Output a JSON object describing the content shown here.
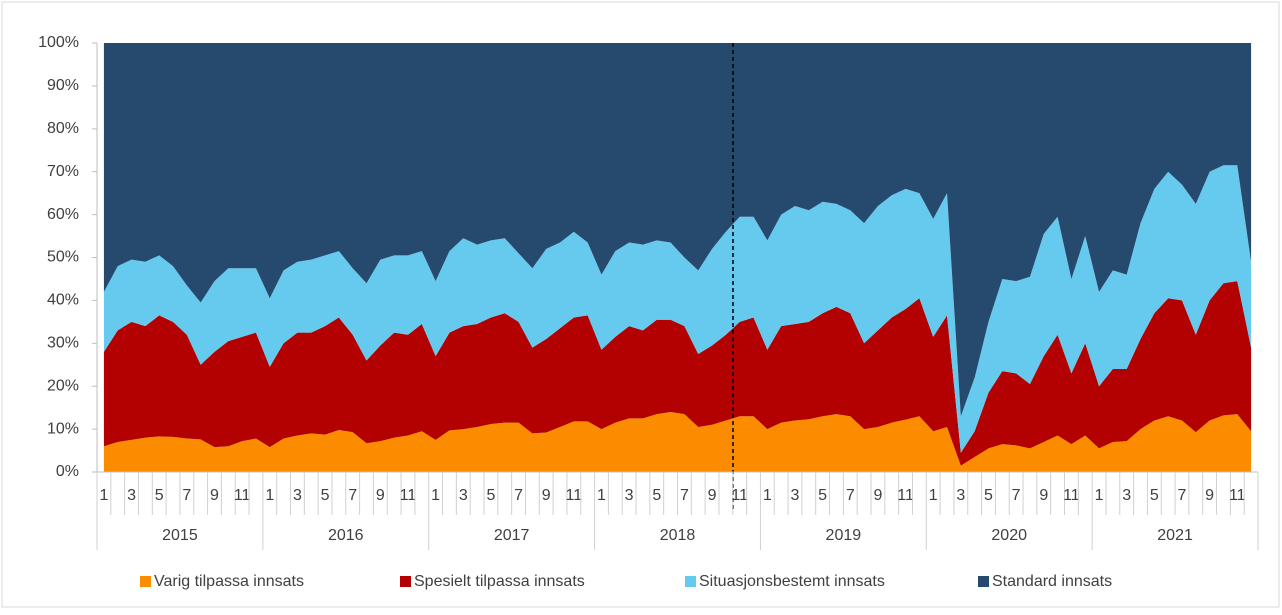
{
  "chart_data": {
    "type": "stacked_area",
    "categories": [
      "1",
      null,
      "3",
      null,
      "5",
      null,
      "7",
      null,
      "9",
      null,
      "11",
      null,
      "1",
      null,
      "3",
      null,
      "5",
      null,
      "7",
      null,
      "9",
      null,
      "11",
      null,
      "1",
      null,
      "3",
      null,
      "5",
      null,
      "7",
      null,
      "9",
      null,
      "11",
      null,
      "1",
      null,
      "3",
      null,
      "5",
      null,
      "7",
      null,
      "9",
      null,
      "11",
      null,
      "1",
      null,
      "3",
      null,
      "5",
      null,
      "7",
      null,
      "9",
      null,
      "11",
      null,
      "1",
      null,
      "3",
      null,
      "5",
      null,
      "7",
      null,
      "9",
      null,
      "11",
      null,
      "1",
      null,
      "3",
      null,
      "5",
      null,
      "7",
      null,
      "9",
      null,
      "11",
      null
    ],
    "year_groups": [
      "2015",
      "2016",
      "2017",
      "2018",
      "2019",
      "2020",
      "2021"
    ],
    "series": [
      {
        "name": "Varig tilpassa innsats",
        "color": "#fb8c00",
        "values": [
          6,
          7,
          7.5,
          8,
          8.3,
          8.2,
          7.8,
          7.6,
          5.8,
          6,
          7.2,
          7.8,
          5.8,
          7.8,
          8.5,
          9,
          8.7,
          9.8,
          9.3,
          6.7,
          7.2,
          8,
          8.5,
          9.5,
          7.5,
          9.7,
          10,
          10.5,
          11.2,
          11.5,
          11.5,
          9,
          9.2,
          10.5,
          11.8,
          11.8,
          10,
          11.5,
          12.5,
          12.5,
          13.5,
          14,
          13.5,
          10.5,
          11,
          12,
          13,
          13,
          10,
          11.5,
          12,
          12.3,
          13,
          13.5,
          13,
          10,
          10.5,
          11.5,
          12.2,
          13,
          9.5,
          10.5,
          1.5,
          3.5,
          5.5,
          6.5,
          6.2,
          5.5,
          7,
          8.5,
          6.5,
          8.5,
          5.5,
          7,
          7.2,
          10,
          12,
          13,
          12,
          9.3,
          12,
          13.2,
          13.5,
          9.5
        ]
      },
      {
        "name": "Spesielt tilpassa innsats",
        "color": "#b30000",
        "values": [
          22,
          26,
          27.5,
          26,
          28.2,
          26.8,
          24.2,
          17.4,
          22.2,
          24.5,
          24.3,
          24.7,
          18.7,
          22.2,
          24,
          23.5,
          25.3,
          26.2,
          22.7,
          19.3,
          22.3,
          24.5,
          23.5,
          25,
          19.5,
          22.8,
          24,
          24,
          24.8,
          25.5,
          23.5,
          20,
          21.8,
          23,
          24.2,
          24.7,
          18.5,
          20,
          21.5,
          20.5,
          22,
          21.5,
          20.5,
          17,
          18.5,
          20,
          22,
          23,
          18.5,
          22.5,
          22.5,
          22.7,
          24,
          25,
          24,
          20,
          22.5,
          24.5,
          25.8,
          27.5,
          22,
          26,
          3,
          6,
          13,
          17,
          16.8,
          15,
          20,
          23.5,
          16.5,
          21.5,
          14.5,
          17,
          16.8,
          21,
          25,
          27.5,
          28,
          22.7,
          28,
          30.8,
          31,
          19.5
        ]
      },
      {
        "name": "Situasjonsbestemt innsats",
        "color": "#66c9ee",
        "values": [
          14,
          15,
          14.5,
          15,
          14,
          13,
          11.5,
          14.5,
          16.5,
          17,
          16,
          15,
          16,
          17,
          16.5,
          17,
          16.5,
          15.5,
          15.5,
          18,
          20,
          18,
          18.5,
          17,
          17.5,
          19,
          20.5,
          18.5,
          18,
          17.5,
          16,
          18.5,
          21,
          20,
          20,
          17,
          17.5,
          20,
          19.5,
          20,
          18.5,
          18,
          16,
          19.5,
          22.5,
          24,
          24.5,
          23.5,
          25.5,
          26,
          27.5,
          26,
          26,
          24,
          24,
          28,
          29,
          28.5,
          28,
          24.5,
          27.5,
          28.5,
          8.5,
          12.5,
          16.5,
          21.5,
          21.5,
          25,
          28.5,
          27.5,
          22,
          25,
          22,
          23,
          22,
          27,
          29,
          29.5,
          27,
          30.5,
          30,
          27.5,
          27,
          20
        ]
      },
      {
        "name": "Standard innsats",
        "color": "#264a6e",
        "values": [
          58,
          52,
          50.5,
          51,
          49.5,
          52,
          56.5,
          60.5,
          55.5,
          52.5,
          52.5,
          52.5,
          59.5,
          53,
          51,
          50.5,
          49.5,
          48.5,
          52.5,
          56,
          50.5,
          49.5,
          49.5,
          48.5,
          55.5,
          48.5,
          45.5,
          47,
          46,
          45.5,
          49,
          52.5,
          48,
          46.5,
          44,
          46.5,
          54,
          48.5,
          46.5,
          47,
          46,
          46.5,
          50,
          53,
          48,
          44,
          40.5,
          40.5,
          46,
          40,
          38,
          39,
          37,
          37.5,
          39,
          42,
          38,
          35.5,
          34,
          35,
          41,
          35,
          87,
          78,
          65,
          55,
          55.5,
          54.5,
          44.5,
          40.5,
          55,
          45,
          58,
          53,
          54,
          42,
          34,
          30,
          33,
          37.5,
          30,
          28.5,
          28.5,
          51
        ]
      }
    ],
    "ylim": [
      0,
      100
    ],
    "yticks": [
      {
        "value": 0,
        "label": "0%"
      },
      {
        "value": 10,
        "label": "10%"
      },
      {
        "value": 20,
        "label": "20%"
      },
      {
        "value": 30,
        "label": "30%"
      },
      {
        "value": 40,
        "label": "40%"
      },
      {
        "value": 50,
        "label": "50%"
      },
      {
        "value": 60,
        "label": "60%"
      },
      {
        "value": 70,
        "label": "70%"
      },
      {
        "value": 80,
        "label": "80%"
      },
      {
        "value": 90,
        "label": "90%"
      },
      {
        "value": 100,
        "label": "100%"
      }
    ],
    "legend": "bottom"
  }
}
